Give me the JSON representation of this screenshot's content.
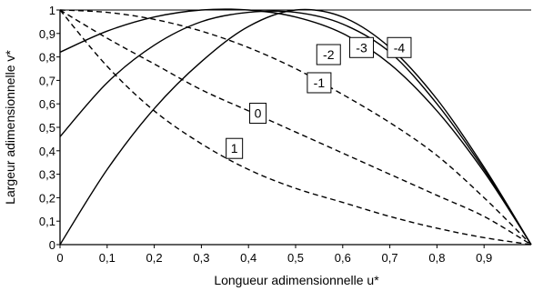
{
  "chart_data": {
    "type": "line",
    "xlabel": "Longueur adimensionnelle u*",
    "ylabel": "Largeur adimensionnelle v*",
    "xlim": [
      0,
      1
    ],
    "ylim": [
      0,
      1
    ],
    "x_ticks": [
      "0",
      "0,1",
      "0,2",
      "0,3",
      "0,4",
      "0,5",
      "0,6",
      "0,7",
      "0,8",
      "0,9"
    ],
    "y_ticks": [
      "0",
      "0,1",
      "0,2",
      "0,3",
      "0,4",
      "0,5",
      "0,6",
      "0,7",
      "0,8",
      "0,9",
      "1"
    ],
    "grid": false,
    "series": [
      {
        "name": "-4",
        "style": "solid",
        "x": [
          0,
          0.1,
          0.2,
          0.3,
          0.4,
          0.5,
          0.6,
          0.7,
          0.8,
          0.9,
          1
        ],
        "y": [
          0,
          0.32,
          0.58,
          0.78,
          0.93,
          1.0,
          0.97,
          0.84,
          0.62,
          0.33,
          0
        ]
      },
      {
        "name": "-3",
        "style": "solid",
        "x": [
          0,
          0.1,
          0.2,
          0.3,
          0.4,
          0.5,
          0.6,
          0.7,
          0.8,
          0.9,
          1
        ],
        "y": [
          0.46,
          0.69,
          0.85,
          0.95,
          0.99,
          0.99,
          0.94,
          0.82,
          0.6,
          0.32,
          0
        ]
      },
      {
        "name": "-2",
        "style": "solid",
        "x": [
          0,
          0.1,
          0.2,
          0.3,
          0.4,
          0.5,
          0.6,
          0.7,
          0.8,
          0.9,
          1
        ],
        "y": [
          0.82,
          0.91,
          0.97,
          1.0,
          1.0,
          0.97,
          0.9,
          0.77,
          0.57,
          0.31,
          0
        ]
      },
      {
        "name": "-1",
        "style": "dashed",
        "x": [
          0,
          0.1,
          0.2,
          0.3,
          0.4,
          0.5,
          0.6,
          0.7,
          0.8,
          0.9,
          1
        ],
        "y": [
          1.0,
          0.99,
          0.96,
          0.91,
          0.84,
          0.75,
          0.64,
          0.52,
          0.38,
          0.2,
          0
        ]
      },
      {
        "name": "0",
        "style": "dashed",
        "x": [
          0,
          0.1,
          0.2,
          0.3,
          0.4,
          0.5,
          0.6,
          0.7,
          0.8,
          0.9,
          1
        ],
        "y": [
          1.0,
          0.88,
          0.77,
          0.66,
          0.57,
          0.48,
          0.39,
          0.3,
          0.21,
          0.12,
          0
        ]
      },
      {
        "name": "1",
        "style": "dashed",
        "x": [
          0,
          0.1,
          0.2,
          0.3,
          0.4,
          0.5,
          0.6,
          0.7,
          0.8,
          0.9,
          1
        ],
        "y": [
          1.0,
          0.76,
          0.57,
          0.43,
          0.32,
          0.24,
          0.18,
          0.12,
          0.07,
          0.03,
          0
        ]
      }
    ],
    "curve_labels": [
      {
        "text": "1",
        "x": 0.37,
        "y": 0.41
      },
      {
        "text": "0",
        "x": 0.42,
        "y": 0.56
      },
      {
        "text": "-1",
        "x": 0.55,
        "y": 0.69
      },
      {
        "text": "-2",
        "x": 0.57,
        "y": 0.81
      },
      {
        "text": "-3",
        "x": 0.64,
        "y": 0.84
      },
      {
        "text": "-4",
        "x": 0.72,
        "y": 0.84
      }
    ]
  }
}
